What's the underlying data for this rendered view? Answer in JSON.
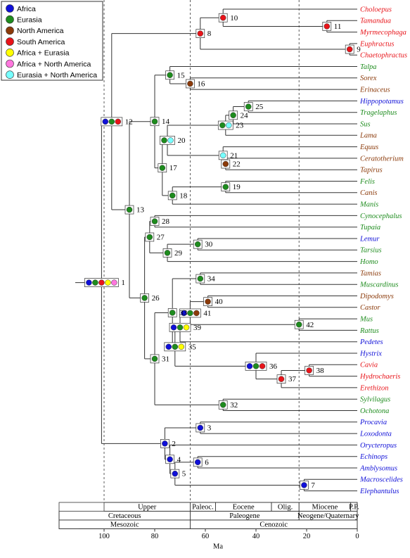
{
  "legend": [
    {
      "label": "Africa",
      "color": "#1010d8"
    },
    {
      "label": "Eurasia",
      "color": "#1e8c1e"
    },
    {
      "label": "North America",
      "color": "#8b3a0a"
    },
    {
      "label": "South America",
      "color": "#e8141a"
    },
    {
      "label": "Africa + Eurasia",
      "color": "#ffff00"
    },
    {
      "label": "Africa + North America",
      "color": "#ff77dd"
    },
    {
      "label": "Eurasia + North America",
      "color": "#77ffff"
    }
  ],
  "taxa": [
    {
      "name": "Choloepus",
      "region": 3
    },
    {
      "name": "Tamandua",
      "region": 3
    },
    {
      "name": "Myrmecophaga",
      "region": 3
    },
    {
      "name": "Euphractus",
      "region": 3
    },
    {
      "name": "Chaetophractus",
      "region": 3
    },
    {
      "name": "Talpa",
      "region": 1
    },
    {
      "name": "Sorex",
      "region": 2
    },
    {
      "name": "Erinaceus",
      "region": 2
    },
    {
      "name": "Hippopotamus",
      "region": 0
    },
    {
      "name": "Tragelaphus",
      "region": 1
    },
    {
      "name": "Sus",
      "region": 1
    },
    {
      "name": "Lama",
      "region": 2
    },
    {
      "name": "Equus",
      "region": 2
    },
    {
      "name": "Ceratotherium",
      "region": 2
    },
    {
      "name": "Tapirus",
      "region": 2
    },
    {
      "name": "Felis",
      "region": 1
    },
    {
      "name": "Canis",
      "region": 2
    },
    {
      "name": "Manis",
      "region": 1
    },
    {
      "name": "Cynocephalus",
      "region": 1
    },
    {
      "name": "Tupaia",
      "region": 1
    },
    {
      "name": "Lemur",
      "region": 0
    },
    {
      "name": "Tarsius",
      "region": 1
    },
    {
      "name": "Homo",
      "region": 1
    },
    {
      "name": "Tamias",
      "region": 2
    },
    {
      "name": "Muscardinus",
      "region": 1
    },
    {
      "name": "Dipodomys",
      "region": 2
    },
    {
      "name": "Castor",
      "region": 2
    },
    {
      "name": "Mus",
      "region": 1
    },
    {
      "name": "Rattus",
      "region": 1
    },
    {
      "name": "Pedetes",
      "region": 0
    },
    {
      "name": "Hystrix",
      "region": 0
    },
    {
      "name": "Cavia",
      "region": 3
    },
    {
      "name": "Hydrochaeris",
      "region": 3
    },
    {
      "name": "Erethizon",
      "region": 3
    },
    {
      "name": "Sylvilagus",
      "region": 1
    },
    {
      "name": "Ochotona",
      "region": 1
    },
    {
      "name": "Procavia",
      "region": 0
    },
    {
      "name": "Loxodonta",
      "region": 0
    },
    {
      "name": "Orycteropus",
      "region": 0
    },
    {
      "name": "Echinops",
      "region": 0
    },
    {
      "name": "Amblysomus",
      "region": 0
    },
    {
      "name": "Macroscelides",
      "region": 0
    },
    {
      "name": "Elephantulus",
      "region": 0
    }
  ],
  "nodes": [
    {
      "label": "1",
      "age": 101,
      "states": [
        0,
        1,
        3,
        4,
        5
      ],
      "children": [
        "12",
        "2"
      ]
    },
    {
      "label": "12",
      "age": 97,
      "states": [
        0,
        1,
        3
      ],
      "children": [
        "8",
        "13"
      ]
    },
    {
      "label": "8",
      "age": 62,
      "states": [
        3
      ],
      "children": [
        "10",
        "9"
      ]
    },
    {
      "label": "10",
      "age": 53,
      "states": [
        3
      ],
      "children": [
        "Choloepus",
        "11"
      ]
    },
    {
      "label": "11",
      "age": 12,
      "states": [
        3
      ],
      "children": [
        "Tamandua",
        "Myrmecophaga"
      ]
    },
    {
      "label": "9",
      "age": 3,
      "states": [
        3
      ],
      "children": [
        "Euphractus",
        "Chaetophractus"
      ]
    },
    {
      "label": "13",
      "age": 90,
      "states": [
        1
      ],
      "children": [
        "14",
        "26"
      ]
    },
    {
      "label": "14",
      "age": 80,
      "states": [
        1
      ],
      "children": [
        "15",
        "17"
      ]
    },
    {
      "label": "15",
      "age": 74,
      "states": [
        1
      ],
      "children": [
        "Talpa",
        "16"
      ]
    },
    {
      "label": "16",
      "age": 66,
      "states": [
        2
      ],
      "children": [
        "Sorex",
        "Erinaceus"
      ]
    },
    {
      "label": "17",
      "age": 77,
      "states": [
        1
      ],
      "children": [
        "20",
        "18"
      ]
    },
    {
      "label": "20",
      "age": 75,
      "states": [
        1,
        6
      ],
      "children": [
        "23",
        "21"
      ]
    },
    {
      "label": "23",
      "age": 52,
      "states": [
        1,
        6
      ],
      "children": [
        "24",
        "Lama"
      ]
    },
    {
      "label": "24",
      "age": 49,
      "states": [
        1
      ],
      "children": [
        "25",
        "Sus"
      ]
    },
    {
      "label": "25",
      "age": 43,
      "states": [
        1
      ],
      "children": [
        "Hippopotamus",
        "Tragelaphus"
      ]
    },
    {
      "label": "21",
      "age": 53,
      "states": [
        6
      ],
      "children": [
        "Equus",
        "22"
      ]
    },
    {
      "label": "22",
      "age": 52,
      "states": [
        2
      ],
      "children": [
        "Ceratotherium",
        "Tapirus"
      ]
    },
    {
      "label": "18",
      "age": 73,
      "states": [
        1
      ],
      "children": [
        "19",
        "Manis"
      ]
    },
    {
      "label": "19",
      "age": 52,
      "states": [
        1
      ],
      "children": [
        "Felis",
        "Canis"
      ]
    },
    {
      "label": "26",
      "age": 84,
      "states": [
        1
      ],
      "children": [
        "27",
        "31"
      ]
    },
    {
      "label": "27",
      "age": 82,
      "states": [
        1
      ],
      "children": [
        "28",
        "29"
      ]
    },
    {
      "label": "28",
      "age": 80,
      "states": [
        1
      ],
      "children": [
        "Cynocephalus",
        "Tupaia"
      ]
    },
    {
      "label": "29",
      "age": 75,
      "states": [
        1
      ],
      "children": [
        "30",
        "Homo"
      ]
    },
    {
      "label": "30",
      "age": 63,
      "states": [
        1
      ],
      "children": [
        "Lemur",
        "Tarsius"
      ]
    },
    {
      "label": "31",
      "age": 80,
      "states": [
        1
      ],
      "children": [
        "33",
        "32"
      ]
    },
    {
      "label": "33",
      "age": 73,
      "states": [
        1
      ],
      "children": [
        "34",
        "35"
      ]
    },
    {
      "label": "34",
      "age": 62,
      "states": [
        1
      ],
      "children": [
        "Tamias",
        "Muscardinus"
      ]
    },
    {
      "label": "35",
      "age": 72,
      "states": [
        0,
        1,
        4
      ],
      "children": [
        "39",
        "36"
      ]
    },
    {
      "label": "39",
      "age": 70,
      "states": [
        0,
        1,
        4
      ],
      "children": [
        "41",
        "Pedetes"
      ]
    },
    {
      "label": "41",
      "age": 66,
      "states": [
        0,
        1,
        2
      ],
      "children": [
        "40",
        "42"
      ]
    },
    {
      "label": "40",
      "age": 59,
      "states": [
        2
      ],
      "children": [
        "Dipodomys",
        "Castor"
      ]
    },
    {
      "label": "42",
      "age": 23,
      "states": [
        1
      ],
      "children": [
        "Mus",
        "Rattus"
      ]
    },
    {
      "label": "36",
      "age": 40,
      "states": [
        0,
        1,
        3
      ],
      "children": [
        "Hystrix",
        "37"
      ]
    },
    {
      "label": "37",
      "age": 30,
      "states": [
        3
      ],
      "children": [
        "38",
        "Erethizon"
      ]
    },
    {
      "label": "38",
      "age": 19,
      "states": [
        3
      ],
      "children": [
        "Cavia",
        "Hydrochaeris"
      ]
    },
    {
      "label": "32",
      "age": 53,
      "states": [
        1
      ],
      "children": [
        "Sylvilagus",
        "Ochotona"
      ]
    },
    {
      "label": "2",
      "age": 76,
      "states": [
        0
      ],
      "children": [
        "3",
        "4"
      ]
    },
    {
      "label": "3",
      "age": 62,
      "states": [
        0
      ],
      "children": [
        "Procavia",
        "Loxodonta"
      ]
    },
    {
      "label": "4",
      "age": 74,
      "states": [
        0
      ],
      "children": [
        "Orycteropus",
        "5"
      ]
    },
    {
      "label": "5",
      "age": 72,
      "states": [
        0
      ],
      "children": [
        "6",
        "7"
      ]
    },
    {
      "label": "6",
      "age": 63,
      "states": [
        0
      ],
      "children": [
        "Echinops",
        "Amblysomus"
      ]
    },
    {
      "label": "7",
      "age": 21,
      "states": [
        0
      ],
      "children": [
        "Macroscelides",
        "Elephantulus"
      ]
    }
  ],
  "dashed_lines": [
    100,
    66,
    23
  ],
  "timescale": [
    [
      {
        "label": "Upper",
        "from": 100,
        "to": 66
      },
      {
        "label": "Paleoc.",
        "from": 66,
        "to": 56
      },
      {
        "label": "Eocene",
        "from": 56,
        "to": 33.9
      },
      {
        "label": "Olig.",
        "from": 33.9,
        "to": 23
      },
      {
        "label": "Miocene",
        "from": 23,
        "to": 2.6
      },
      {
        "label": "P.P.",
        "from": 2.6,
        "to": 0
      }
    ],
    [
      {
        "label": "Cretaceous",
        "to": 66
      },
      {
        "label": "Paleogene",
        "from": 66,
        "to": 23
      },
      {
        "label": "Neogene/Quaternary",
        "from": 23,
        "to": 0
      }
    ],
    [
      {
        "label": "Mesozoic",
        "to": 66
      },
      {
        "label": "Cenozoic",
        "from": 66,
        "to": 0
      }
    ]
  ],
  "axis": {
    "label": "Ma",
    "xlim": [
      110,
      0
    ],
    "xticks": [
      100,
      80,
      60,
      40,
      20,
      0
    ]
  }
}
